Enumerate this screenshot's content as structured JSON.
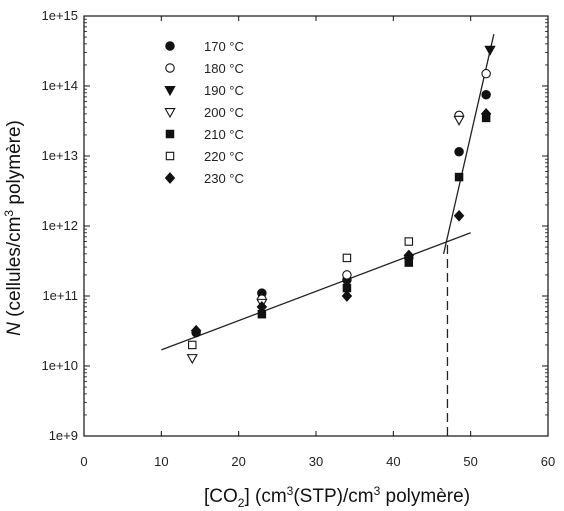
{
  "chart_data": {
    "type": "scatter",
    "title": "",
    "xlabel": {
      "pre": "[CO",
      "sub": "2",
      "mid1": "] (cm",
      "sup1": "3",
      "mid2": "(STP)/cm",
      "sup2": "3",
      "post": " polymère)"
    },
    "ylabel": {
      "italic": "N",
      "pre": " (cellules/cm",
      "sup": "3",
      "post": " polymère)"
    },
    "xlim": [
      0,
      60
    ],
    "ylim": [
      1000000000.0,
      1000000000000000.0
    ],
    "yscale": "log",
    "x_ticks": [
      0,
      10,
      20,
      30,
      40,
      50,
      60
    ],
    "x_tick_labels": [
      "0",
      "10",
      "20",
      "30",
      "40",
      "50",
      "60"
    ],
    "y_ticks": [
      1000000000.0,
      10000000000.0,
      100000000000.0,
      1000000000000.0,
      10000000000000.0,
      100000000000000.0,
      1000000000000000.0
    ],
    "y_tick_labels": [
      "1e+9",
      "1e+10",
      "1e+11",
      "1e+12",
      "1e+13",
      "1e+14",
      "1e+15"
    ],
    "legend_placement": "top-left",
    "series": [
      {
        "name": "170 °C",
        "marker": "filled-circle",
        "points": [
          [
            14.5,
            30000000000.0
          ],
          [
            23,
            110000000000.0
          ],
          [
            34,
            170000000000.0
          ],
          [
            42,
            350000000000.0
          ],
          [
            48.5,
            11500000000000.0
          ],
          [
            52,
            75000000000000.0
          ]
        ]
      },
      {
        "name": "180 °C",
        "marker": "open-circle",
        "points": [
          [
            23,
            90000000000.0
          ],
          [
            34,
            200000000000.0
          ],
          [
            48.5,
            38000000000000.0
          ],
          [
            52,
            150000000000000.0
          ]
        ]
      },
      {
        "name": "190 °C",
        "marker": "filled-triangle-down",
        "points": [
          [
            52.5,
            330000000000000.0
          ]
        ]
      },
      {
        "name": "200 °C",
        "marker": "open-triangle-down",
        "points": [
          [
            14,
            13000000000.0
          ],
          [
            23,
            80000000000.0
          ],
          [
            48.5,
            33000000000000.0
          ]
        ]
      },
      {
        "name": "210 °C",
        "marker": "filled-square",
        "points": [
          [
            23,
            55000000000.0
          ],
          [
            34,
            130000000000.0
          ],
          [
            42,
            300000000000.0
          ],
          [
            48.5,
            5000000000000.0
          ],
          [
            52,
            35000000000000.0
          ]
        ]
      },
      {
        "name": "220 °C",
        "marker": "open-square",
        "points": [
          [
            14,
            20000000000.0
          ],
          [
            34,
            350000000000.0
          ],
          [
            42,
            600000000000.0
          ]
        ]
      },
      {
        "name": "230 °C",
        "marker": "filled-diamond",
        "points": [
          [
            14.5,
            32000000000.0
          ],
          [
            23,
            70000000000.0
          ],
          [
            34,
            100000000000.0
          ],
          [
            42,
            380000000000.0
          ],
          [
            48.5,
            1400000000000.0
          ],
          [
            52,
            40000000000000.0
          ]
        ]
      }
    ],
    "fit_lines": [
      {
        "style": "solid",
        "points": [
          [
            10,
            17000000000.0
          ],
          [
            50,
            800000000000.0
          ]
        ]
      },
      {
        "style": "solid",
        "points": [
          [
            46.5,
            400000000000.0
          ],
          [
            53,
            550000000000000.0
          ]
        ]
      },
      {
        "style": "dashed",
        "points": [
          [
            47,
            1000000000.0
          ],
          [
            47,
            550000000000.0
          ]
        ]
      }
    ]
  }
}
